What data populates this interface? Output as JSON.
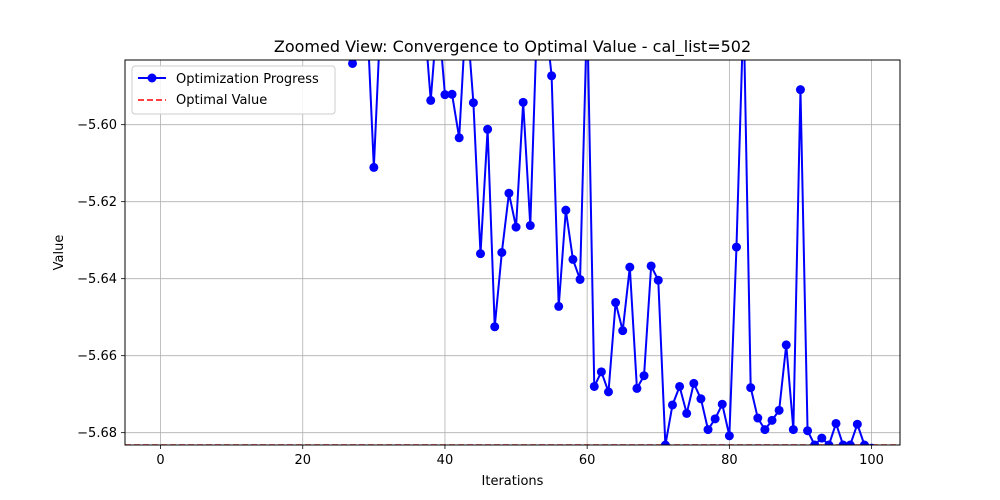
{
  "chart_data": {
    "type": "line",
    "title": "Zoomed View: Convergence to Optimal Value - cal_list=502",
    "xlabel": "Iterations",
    "ylabel": "Value",
    "xlim": [
      -5,
      104
    ],
    "ylim": [
      -5.6832,
      -5.5832
    ],
    "xticks": [
      0,
      20,
      40,
      60,
      80,
      100
    ],
    "xtick_labels": [
      "0",
      "20",
      "40",
      "60",
      "80",
      "100"
    ],
    "yticks": [
      -5.68,
      -5.66,
      -5.64,
      -5.62,
      -5.6
    ],
    "ytick_labels": [
      "−5.68",
      "−5.66",
      "−5.64",
      "−5.62",
      "−5.60"
    ],
    "grid": true,
    "legend_position": "upper left",
    "series": [
      {
        "name": "Optimization Progress",
        "color": "#0000ff",
        "marker": "circle",
        "x": [
          26,
          27,
          28,
          29,
          30,
          31,
          37,
          38,
          39,
          40,
          41,
          42,
          43,
          44,
          45,
          46,
          47,
          48,
          49,
          50,
          51,
          52,
          53,
          54,
          55,
          56,
          57,
          58,
          59,
          60,
          61,
          62,
          63,
          64,
          65,
          66,
          67,
          68,
          69,
          70,
          71,
          72,
          73,
          74,
          75,
          76,
          77,
          78,
          79,
          80,
          81,
          82,
          83,
          84,
          85,
          86,
          87,
          88,
          89,
          90,
          91,
          92,
          93,
          94,
          95,
          96,
          97,
          98,
          99,
          100
        ],
        "values": [
          -5.57,
          -5.5841,
          -5.57,
          -5.57,
          -5.6111,
          -5.57,
          -5.57,
          -5.5937,
          -5.57,
          -5.5922,
          -5.5921,
          -5.6034,
          -5.57,
          -5.5943,
          -5.6335,
          -5.6012,
          -5.6525,
          -5.6332,
          -5.6178,
          -5.6266,
          -5.5942,
          -5.6262,
          -5.57,
          -5.57,
          -5.5873,
          -5.6472,
          -5.6222,
          -5.635,
          -5.6402,
          -5.57,
          -5.668,
          -5.6642,
          -5.6694,
          -5.6462,
          -5.6535,
          -5.637,
          -5.6685,
          -5.6652,
          -5.6367,
          -5.6404,
          -5.6832,
          -5.6728,
          -5.668,
          -5.675,
          -5.6672,
          -5.6712,
          -5.6792,
          -5.6764,
          -5.6726,
          -5.6808,
          -5.6318,
          -5.57,
          -5.6683,
          -5.6762,
          -5.6792,
          -5.6768,
          -5.6742,
          -5.6572,
          -5.6792,
          -5.5909,
          -5.6795,
          -5.6832,
          -5.6814,
          -5.6832,
          -5.6776,
          -5.6832,
          -5.6832,
          -5.6778,
          -5.6832,
          -5.684
        ]
      },
      {
        "name": "Optimal Value",
        "color": "#ff0000",
        "style": "dashed",
        "y": -5.6832
      }
    ]
  }
}
